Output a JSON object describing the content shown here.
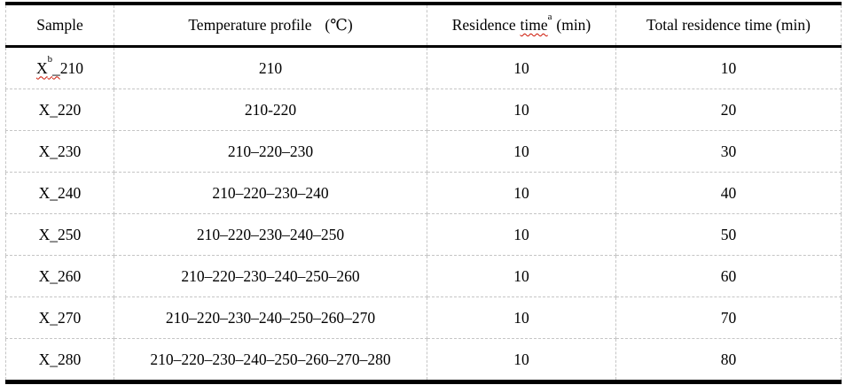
{
  "table": {
    "header": {
      "sample": "Sample",
      "temp_label": "Temperature profile",
      "temp_unit": "(℃)",
      "residence_word1": "Residence",
      "residence_word2": "time",
      "residence_sup": "a",
      "residence_unit": "(min)",
      "total": "Total residence time (min)"
    },
    "rows": [
      {
        "sample_x": "X",
        "sample_sup": "b",
        "sample_us": "_",
        "sample_rest": "210",
        "profile": "210",
        "residence": "10",
        "total": "10"
      },
      {
        "sample": "X_220",
        "profile": "210-220",
        "residence": "10",
        "total": "20"
      },
      {
        "sample": "X_230",
        "profile": "210–220–230",
        "residence": "10",
        "total": "30"
      },
      {
        "sample": "X_240",
        "profile": "210–220–230–240",
        "residence": "10",
        "total": "40"
      },
      {
        "sample": "X_250",
        "profile": "210–220–230–240–250",
        "residence": "10",
        "total": "50"
      },
      {
        "sample": "X_260",
        "profile": "210–220–230–240–250–260",
        "residence": "10",
        "total": "60"
      },
      {
        "sample": "X_270",
        "profile": "210–220–230–240–250–260–270",
        "residence": "10",
        "total": "70"
      },
      {
        "sample": "X_280",
        "profile": "210–220–230–240–250–260–270–280",
        "residence": "10",
        "total": "80"
      }
    ],
    "colors": {
      "rule": "#000000",
      "gridline": "#c5c5c5",
      "spellcheck_squiggle": "#cc1100",
      "text": "#000000",
      "background": "#ffffff"
    }
  }
}
